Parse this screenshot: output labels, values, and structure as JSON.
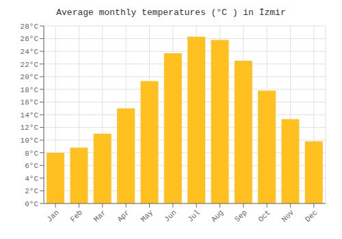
{
  "chart_data": {
    "type": "bar",
    "title": "Average monthly temperatures (°C ) in İzmir",
    "categories": [
      "Jan",
      "Feb",
      "Mar",
      "Apr",
      "May",
      "Jun",
      "Jul",
      "Aug",
      "Sep",
      "Oct",
      "Nov",
      "Dec"
    ],
    "values": [
      8.0,
      8.8,
      11.0,
      15.0,
      19.3,
      23.7,
      26.3,
      25.8,
      22.5,
      17.8,
      13.3,
      9.8
    ],
    "color": "#FFC020",
    "ylim": [
      0,
      28
    ],
    "yticks": [
      {
        "value": 0,
        "label": "0°C"
      },
      {
        "value": 2,
        "label": "2°C"
      },
      {
        "value": 4,
        "label": "4°C"
      },
      {
        "value": 6,
        "label": "6°C"
      },
      {
        "value": 8,
        "label": "8°C"
      },
      {
        "value": 10,
        "label": "10°C"
      },
      {
        "value": 12,
        "label": "12°C"
      },
      {
        "value": 14,
        "label": "14°C"
      },
      {
        "value": 16,
        "label": "16°C"
      },
      {
        "value": 18,
        "label": "18°C"
      },
      {
        "value": 20,
        "label": "20°C"
      },
      {
        "value": 22,
        "label": "22°C"
      },
      {
        "value": 24,
        "label": "24°C"
      },
      {
        "value": 26,
        "label": "26°C"
      },
      {
        "value": 28,
        "label": "28°C"
      }
    ],
    "grid": true
  }
}
